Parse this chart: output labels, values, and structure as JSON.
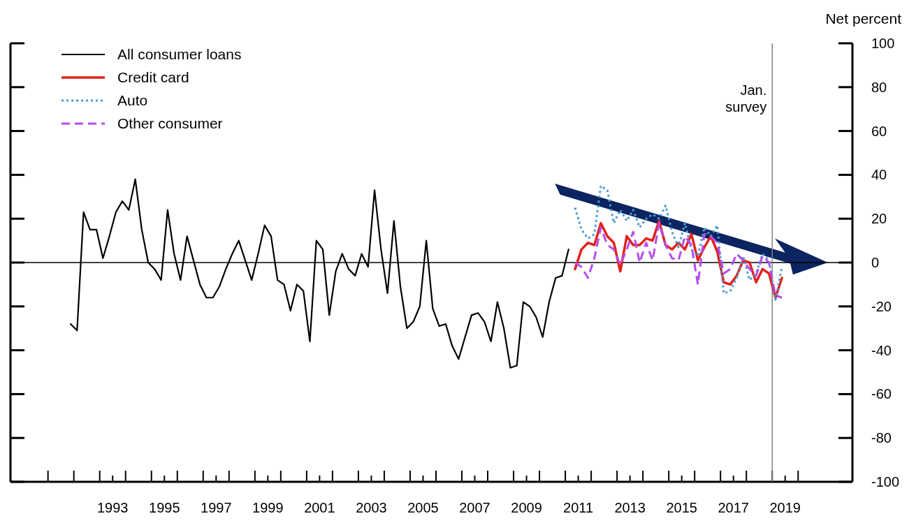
{
  "chart_data": {
    "type": "line",
    "ylabel": "Net percent",
    "xlim": [
      1989.55,
      2022.1
    ],
    "ylim": [
      -100,
      100
    ],
    "yticks": [
      -100,
      -80,
      -60,
      -40,
      -20,
      0,
      20,
      40,
      60,
      80,
      100
    ],
    "xticks": [
      {
        "value": 1991,
        "label": null
      },
      {
        "value": 1992,
        "label": null
      },
      {
        "value": 1993,
        "label": null
      },
      {
        "value": 1993.5,
        "label": "1993"
      },
      {
        "value": 1994,
        "label": null
      },
      {
        "value": 1995,
        "label": null
      },
      {
        "value": 1995.5,
        "label": "1995"
      },
      {
        "value": 1996,
        "label": null
      },
      {
        "value": 1997,
        "label": null
      },
      {
        "value": 1997.5,
        "label": "1997"
      },
      {
        "value": 1998,
        "label": null
      },
      {
        "value": 1999,
        "label": null
      },
      {
        "value": 1999.5,
        "label": "1999"
      },
      {
        "value": 2000,
        "label": null
      },
      {
        "value": 2001,
        "label": null
      },
      {
        "value": 2001.5,
        "label": "2001"
      },
      {
        "value": 2002,
        "label": null
      },
      {
        "value": 2003,
        "label": null
      },
      {
        "value": 2003.5,
        "label": "2003"
      },
      {
        "value": 2004,
        "label": null
      },
      {
        "value": 2005,
        "label": null
      },
      {
        "value": 2005.5,
        "label": "2005"
      },
      {
        "value": 2006,
        "label": null
      },
      {
        "value": 2007,
        "label": null
      },
      {
        "value": 2007.5,
        "label": "2007"
      },
      {
        "value": 2008,
        "label": null
      },
      {
        "value": 2009,
        "label": null
      },
      {
        "value": 2009.5,
        "label": "2009"
      },
      {
        "value": 2010,
        "label": null
      },
      {
        "value": 2011,
        "label": null
      },
      {
        "value": 2011.5,
        "label": "2011"
      },
      {
        "value": 2012,
        "label": null
      },
      {
        "value": 2013,
        "label": null
      },
      {
        "value": 2013.5,
        "label": "2013"
      },
      {
        "value": 2014,
        "label": null
      },
      {
        "value": 2015,
        "label": null
      },
      {
        "value": 2015.5,
        "label": "2015"
      },
      {
        "value": 2016,
        "label": null
      },
      {
        "value": 2017,
        "label": null
      },
      {
        "value": 2017.5,
        "label": "2017"
      },
      {
        "value": 2018,
        "label": null
      },
      {
        "value": 2019,
        "label": null
      },
      {
        "value": 2019.5,
        "label": "2019"
      },
      {
        "value": 2020,
        "label": null
      }
    ],
    "legend": "top left",
    "grid": false,
    "ref_lines": [
      {
        "axis": "y",
        "value": 0,
        "color": "#000000"
      },
      {
        "axis": "x",
        "value": 2019,
        "label": "Jan. survey",
        "color": "#808080"
      }
    ],
    "series": [
      {
        "name": "All consumer loans",
        "color": "#000000",
        "line_style": "solid",
        "x": [
          1991.875,
          1992.125,
          1992.375,
          1992.625,
          1992.875,
          1993.125,
          1993.375,
          1993.625,
          1993.875,
          1994.125,
          1994.375,
          1994.625,
          1994.875,
          1995.125,
          1995.375,
          1995.625,
          1995.875,
          1996.125,
          1996.375,
          1996.625,
          1996.875,
          1997.125,
          1997.375,
          1997.625,
          1997.875,
          1998.125,
          1998.375,
          1998.625,
          1998.875,
          1999.125,
          1999.375,
          1999.625,
          1999.875,
          2000.125,
          2000.375,
          2000.625,
          2000.875,
          2001.125,
          2001.375,
          2001.625,
          2001.875,
          2002.125,
          2002.375,
          2002.625,
          2002.875,
          2003.125,
          2003.375,
          2003.625,
          2003.875,
          2004.125,
          2004.375,
          2004.625,
          2004.875,
          2005.125,
          2005.375,
          2005.625,
          2005.875,
          2006.125,
          2006.375,
          2006.625,
          2006.875,
          2007.125,
          2007.375,
          2007.625,
          2007.875,
          2008.125,
          2008.375,
          2008.625,
          2008.875,
          2009.125,
          2009.375,
          2009.625,
          2009.875,
          2010.125,
          2010.375,
          2010.625,
          2010.875,
          2011.125
        ],
        "values": [
          -28,
          -31,
          23,
          15,
          15,
          2,
          12,
          23,
          28,
          24,
          38,
          15,
          0,
          -3,
          -8,
          24,
          4,
          -8,
          12,
          1,
          -10,
          -16,
          -16,
          -11,
          -3,
          4,
          10,
          1,
          -8,
          4,
          17,
          12,
          -8,
          -10,
          -22,
          -10,
          -13,
          -36,
          10,
          6,
          -24,
          -4,
          4,
          -3,
          -6,
          4,
          -2,
          33,
          6,
          -14,
          19,
          -11,
          -30,
          -27,
          -20,
          10,
          -21,
          -29,
          -28,
          -38,
          -44,
          -34,
          -24,
          -23,
          -27,
          -36,
          -18,
          -30,
          -48,
          -47,
          -18,
          -20,
          -25,
          -34,
          -18,
          -7,
          -6,
          6
        ]
      },
      {
        "name": "Credit card",
        "color": "#e0221c",
        "line_style": "solid",
        "x": [
          2011.375,
          2011.625,
          2011.875,
          2012.125,
          2012.375,
          2012.625,
          2012.875,
          2013.125,
          2013.375,
          2013.625,
          2013.875,
          2014.125,
          2014.375,
          2014.625,
          2014.875,
          2015.125,
          2015.375,
          2015.625,
          2015.875,
          2016.125,
          2016.375,
          2016.625,
          2016.875,
          2017.125,
          2017.375,
          2017.625,
          2017.875,
          2018.125,
          2018.375,
          2018.625,
          2018.875,
          2019.125,
          2019.375
        ],
        "values": [
          -3,
          6,
          9,
          8,
          18,
          12,
          9,
          -4,
          12,
          8,
          8,
          11,
          10,
          19,
          8,
          6,
          9,
          6,
          13,
          1,
          7,
          12,
          5,
          -9,
          -10,
          -6,
          1,
          0,
          -9,
          -3,
          -5,
          -16,
          -7
        ]
      },
      {
        "name": "Auto",
        "color": "#4a9bd4",
        "line_style": "dotted",
        "x": [
          2011.375,
          2011.625,
          2011.875,
          2012.125,
          2012.375,
          2012.625,
          2012.875,
          2013.125,
          2013.375,
          2013.625,
          2013.875,
          2014.125,
          2014.375,
          2014.625,
          2014.875,
          2015.125,
          2015.375,
          2015.625,
          2015.875,
          2016.125,
          2016.375,
          2016.625,
          2016.875,
          2017.125,
          2017.375,
          2017.625,
          2017.875,
          2018.125,
          2018.375,
          2018.625,
          2018.875,
          2019.125,
          2019.375
        ],
        "values": [
          25,
          15,
          11,
          13,
          35,
          33,
          18,
          24,
          19,
          24,
          16,
          20,
          22,
          20,
          26,
          14,
          7,
          18,
          6,
          3,
          16,
          12,
          17,
          -14,
          -13,
          -7,
          3,
          -8,
          -5,
          4,
          1,
          -17,
          -2
        ]
      },
      {
        "name": "Other consumer",
        "color": "#b44cf0",
        "line_style": "dashed",
        "x": [
          2011.375,
          2011.625,
          2011.875,
          2012.125,
          2012.375,
          2012.625,
          2012.875,
          2013.125,
          2013.375,
          2013.625,
          2013.875,
          2014.125,
          2014.375,
          2014.625,
          2014.875,
          2015.125,
          2015.375,
          2015.625,
          2015.875,
          2016.125,
          2016.375,
          2016.625,
          2016.875,
          2017.125,
          2017.375,
          2017.625,
          2017.875,
          2018.125,
          2018.375,
          2018.625,
          2018.875,
          2019.125,
          2019.375
        ],
        "values": [
          0,
          -2,
          -7,
          2,
          16,
          8,
          6,
          -1,
          6,
          14,
          0,
          9,
          1,
          18,
          8,
          2,
          1,
          12,
          8,
          -10,
          13,
          12,
          9,
          -5,
          -3,
          4,
          1,
          -3,
          -6,
          3,
          0,
          -15,
          -16
        ]
      }
    ]
  }
}
